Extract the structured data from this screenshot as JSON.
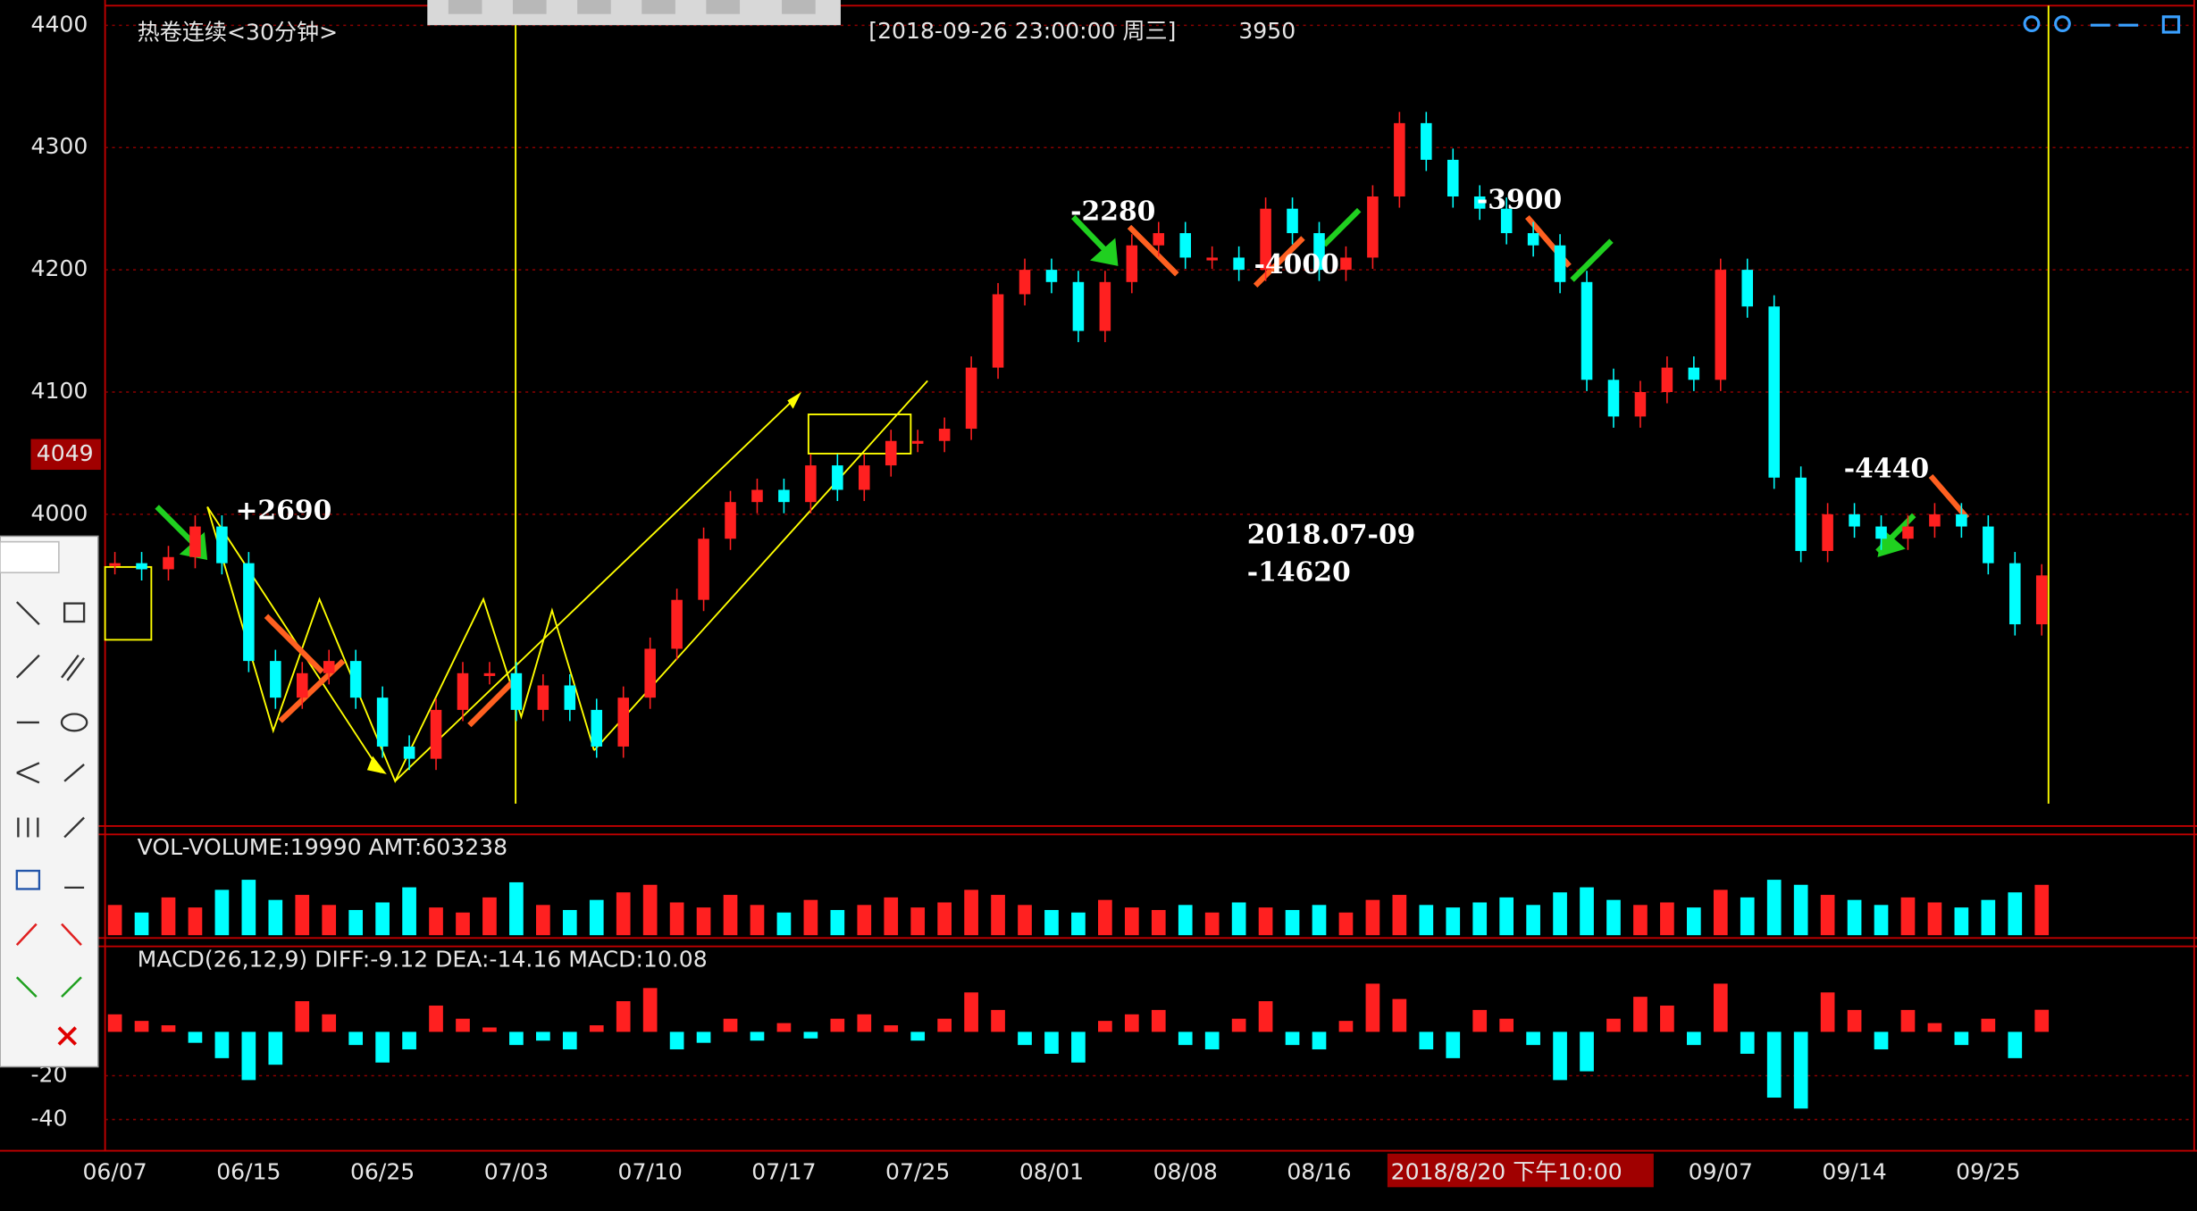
{
  "ui": {
    "cursor_time": "[2018-09-26  23:00:00 周三]",
    "cursor_value": 3950,
    "axis_marker": 4049
  },
  "chart_data": [
    {
      "type": "candlestick",
      "title": "热卷连续<30分钟>",
      "categories": [
        "06/07",
        null,
        null,
        null,
        null,
        "06/15",
        null,
        null,
        null,
        null,
        "06/25",
        null,
        null,
        null,
        null,
        "07/03",
        null,
        null,
        null,
        null,
        "07/10",
        null,
        null,
        null,
        null,
        "07/17",
        null,
        null,
        null,
        null,
        "07/25",
        null,
        null,
        null,
        null,
        "08/01",
        null,
        null,
        null,
        null,
        "08/08",
        null,
        null,
        null,
        null,
        "08/16",
        null,
        null,
        null,
        null,
        null,
        null,
        "2018/8/20 下午10:00",
        null,
        null,
        null,
        null,
        null,
        null,
        null,
        "09/07",
        null,
        null,
        null,
        null,
        "09/14",
        null,
        null,
        null,
        null,
        "09/25",
        null,
        null
      ],
      "values": [
        3960,
        3955,
        3965,
        3990,
        3960,
        3880,
        3850,
        3870,
        3880,
        3850,
        3810,
        3800,
        3840,
        3870,
        3870,
        3840,
        3860,
        3840,
        3810,
        3850,
        3890,
        3930,
        3980,
        4010,
        4020,
        4010,
        4040,
        4020,
        4040,
        4060,
        4060,
        4070,
        4120,
        4180,
        4200,
        4190,
        4150,
        4190,
        4220,
        4230,
        4210,
        4210,
        4200,
        4250,
        4230,
        4200,
        4210,
        4260,
        4320,
        4290,
        4260,
        4250,
        4230,
        4220,
        4190,
        4110,
        4080,
        4100,
        4120,
        4110,
        4200,
        4170,
        4030,
        3970,
        4000,
        3990,
        3980,
        3990,
        4000,
        3990,
        3960,
        3910,
        3950
      ],
      "ylim": [
        3745,
        4415
      ],
      "yticks": [
        4000,
        4100,
        4200,
        4300,
        4400
      ],
      "grid": true,
      "up_color": "#ff2020",
      "down_color": "#00ffff",
      "annotations": [
        "+2690",
        "-2280",
        "-4000",
        "-3900",
        "-4440",
        "2018.07-09",
        "-14620"
      ]
    },
    {
      "type": "bar",
      "title": "VOL-VOLUME:19990 AMT:603238",
      "values": [
        12000,
        9000,
        15000,
        11000,
        18000,
        22000,
        14000,
        16000,
        12000,
        10000,
        13000,
        19000,
        11000,
        9000,
        15000,
        21000,
        12000,
        10000,
        14000,
        17000,
        20000,
        13000,
        11000,
        16000,
        12000,
        9000,
        14000,
        10000,
        12000,
        15000,
        11000,
        13000,
        18000,
        16000,
        12000,
        10000,
        9000,
        14000,
        11000,
        10000,
        12000,
        9000,
        13000,
        11000,
        10000,
        12000,
        9000,
        14000,
        16000,
        12000,
        11000,
        13000,
        15000,
        12000,
        17000,
        19000,
        14000,
        12000,
        13000,
        11000,
        18000,
        15000,
        22000,
        20000,
        16000,
        14000,
        12000,
        15000,
        13000,
        11000,
        14000,
        17000,
        19990
      ],
      "ylim": [
        0,
        40000
      ],
      "up_color": "#ff2020",
      "down_color": "#00ffff"
    },
    {
      "type": "bar",
      "title": "MACD(26,12,9)  DIFF:-9.12 DEA:-14.16 MACD:10.08",
      "values": [
        8,
        5,
        3,
        -5,
        -12,
        -22,
        -15,
        14,
        8,
        -6,
        -14,
        -8,
        12,
        6,
        2,
        -6,
        -4,
        -8,
        3,
        14,
        20,
        -8,
        -5,
        6,
        -4,
        4,
        -3,
        6,
        8,
        3,
        -4,
        6,
        18,
        10,
        -6,
        -10,
        -14,
        5,
        8,
        10,
        -6,
        -8,
        6,
        14,
        -6,
        -8,
        5,
        22,
        15,
        -8,
        -12,
        10,
        6,
        -6,
        -22,
        -18,
        6,
        16,
        12,
        -6,
        22,
        -10,
        -30,
        -35,
        18,
        10,
        -8,
        10,
        4,
        -6,
        6,
        -12,
        10.08
      ],
      "ylim": [
        -53,
        39
      ],
      "yticks": [
        -20,
        -40
      ],
      "grid": true,
      "up_color": "#ff2020",
      "down_color": "#00ffff"
    }
  ]
}
